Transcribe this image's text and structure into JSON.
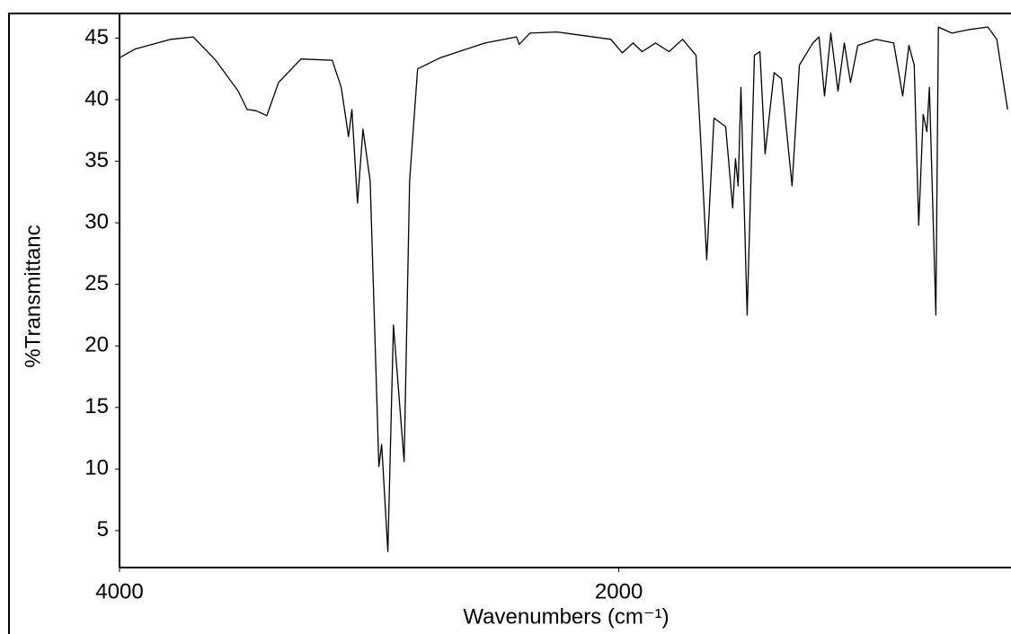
{
  "chart_data": {
    "type": "line",
    "x_label": "Wavenumbers (cm⁻¹)",
    "y_label": "%Transmittanc",
    "color": "#000000",
    "xlim": [
      4000,
      440
    ],
    "ylim": [
      2,
      47
    ],
    "xticks": [
      4000,
      2000
    ],
    "yticks": [
      5,
      10,
      15,
      20,
      25,
      30,
      35,
      40,
      45
    ],
    "x": [
      4000,
      3939,
      3795,
      3705,
      3615,
      3525,
      3489,
      3453,
      3410,
      3363,
      3273,
      3148,
      3112,
      3083,
      3069,
      3047,
      3025,
      2996,
      2961,
      2950,
      2925,
      2903,
      2860,
      2838,
      2806,
      2716,
      2536,
      2410,
      2399,
      2356,
      2248,
      2032,
      1986,
      1943,
      1907,
      1853,
      1799,
      1745,
      1691,
      1673,
      1648,
      1619,
      1572,
      1544,
      1533,
      1522,
      1511,
      1486,
      1457,
      1435,
      1414,
      1378,
      1349,
      1306,
      1277,
      1223,
      1198,
      1176,
      1151,
      1122,
      1097,
      1072,
      1043,
      971,
      899,
      863,
      838,
      817,
      799,
      781,
      766,
      756,
      730,
      720,
      666,
      594,
      522,
      486,
      443
    ],
    "values": [
      43.4,
      44.1,
      44.9,
      45.1,
      43.2,
      40.7,
      39.2,
      39.1,
      38.7,
      41.4,
      43.3,
      43.2,
      41.0,
      37.0,
      39.2,
      31.6,
      37.6,
      33.4,
      10.2,
      12.0,
      3.3,
      21.7,
      10.6,
      33.4,
      42.5,
      43.4,
      44.6,
      45.1,
      44.5,
      45.4,
      45.5,
      44.9,
      43.8,
      44.6,
      43.9,
      44.6,
      43.9,
      44.9,
      43.6,
      37.0,
      27.0,
      38.5,
      37.8,
      31.2,
      35.2,
      33.0,
      41.0,
      22.5,
      43.6,
      43.9,
      35.6,
      42.2,
      41.7,
      33.0,
      42.8,
      44.6,
      45.1,
      40.3,
      45.4,
      40.7,
      44.6,
      41.4,
      44.4,
      44.9,
      44.6,
      40.3,
      44.4,
      42.8,
      29.8,
      38.8,
      37.4,
      41.0,
      22.5,
      45.9,
      45.4,
      45.7,
      45.9,
      44.9,
      39.2
    ]
  }
}
